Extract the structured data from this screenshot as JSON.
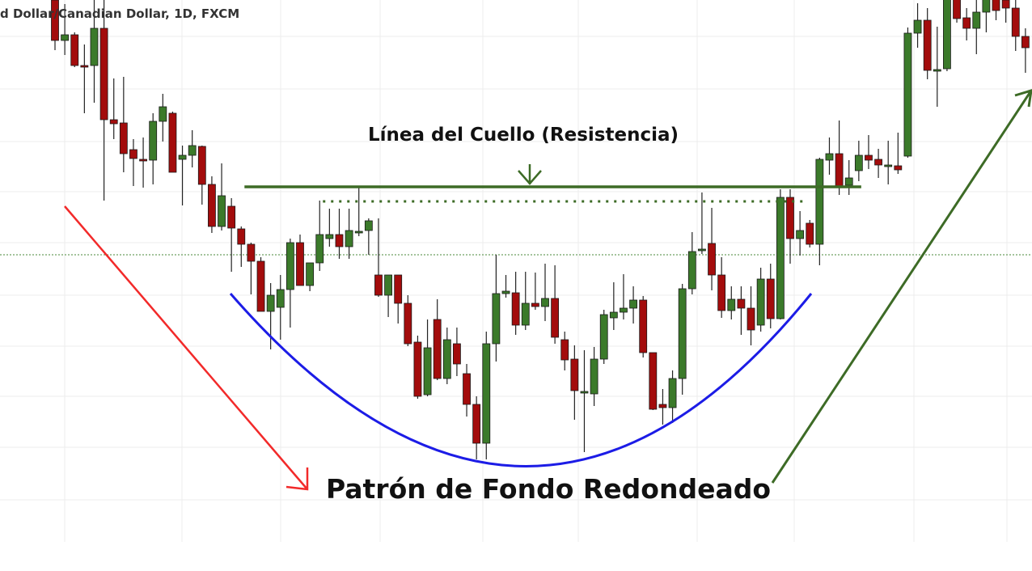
{
  "chart_data": {
    "type": "candlestick",
    "title": "d Dollar/Canadian Dollar, 1D, FXCM",
    "grid": true,
    "colors": {
      "up": "#3b7a2a",
      "down": "#a30c0c",
      "neckline": "#3d6b26",
      "arc": "#1c1ce6",
      "down_arrow": "#f22a2a",
      "up_arrow": "#3d6b26",
      "reference_line": "#4a8a3a"
    },
    "annotations": {
      "neckline_label": "Línea del Cuello (Resistencia)",
      "pattern_label": "Patrón de Fondo Redondeado",
      "neckline": {
        "level": 369,
        "from_index": 19,
        "to_index": 82
      },
      "dotted_resistance": {
        "level": 351,
        "from_index": 27,
        "to_index": 76
      },
      "reference_line": {
        "level": 285
      }
    },
    "ohlc": [
      [
        600,
        610,
        538,
        550
      ],
      [
        550,
        595,
        532,
        557
      ],
      [
        557,
        560,
        517,
        519
      ],
      [
        519,
        545,
        460,
        518
      ],
      [
        519,
        600,
        473,
        565
      ],
      [
        565,
        605,
        352,
        452
      ],
      [
        452,
        503,
        428,
        447
      ],
      [
        448,
        505,
        387,
        410
      ],
      [
        415,
        428,
        370,
        404
      ],
      [
        403,
        430,
        368,
        402
      ],
      [
        402,
        460,
        372,
        450
      ],
      [
        450,
        484,
        425,
        468
      ],
      [
        460,
        462,
        387,
        387
      ],
      [
        403,
        420,
        346,
        408
      ],
      [
        408,
        439,
        393,
        420
      ],
      [
        419,
        420,
        347,
        372
      ],
      [
        372,
        382,
        312,
        320
      ],
      [
        320,
        398,
        315,
        358
      ],
      [
        345,
        355,
        264,
        318
      ],
      [
        317,
        320,
        270,
        298
      ],
      [
        298,
        300,
        236,
        277
      ],
      [
        277,
        282,
        215,
        215
      ],
      [
        215,
        250,
        168,
        235
      ],
      [
        220,
        260,
        180,
        242
      ],
      [
        242,
        305,
        195,
        300
      ],
      [
        300,
        310,
        247,
        247
      ],
      [
        247,
        275,
        240,
        275
      ],
      [
        275,
        352,
        265,
        310
      ],
      [
        305,
        342,
        295,
        310
      ],
      [
        310,
        342,
        280,
        295
      ],
      [
        295,
        342,
        280,
        315
      ],
      [
        314,
        370,
        308,
        314
      ],
      [
        315,
        330,
        285,
        327
      ],
      [
        260,
        330,
        233,
        235
      ],
      [
        235,
        260,
        208,
        260
      ],
      [
        260,
        260,
        200,
        225
      ],
      [
        225,
        235,
        172,
        175
      ],
      [
        177,
        185,
        107,
        110
      ],
      [
        112,
        205,
        110,
        170
      ],
      [
        205,
        230,
        130,
        132
      ],
      [
        132,
        195,
        125,
        180
      ],
      [
        175,
        195,
        135,
        150
      ],
      [
        138,
        150,
        85,
        100
      ],
      [
        100,
        110,
        32,
        52
      ],
      [
        52,
        190,
        32,
        175
      ],
      [
        175,
        285,
        153,
        237
      ],
      [
        237,
        260,
        232,
        240
      ],
      [
        238,
        264,
        186,
        198
      ],
      [
        198,
        264,
        192,
        225
      ],
      [
        225,
        263,
        217,
        221
      ],
      [
        221,
        274,
        203,
        231
      ],
      [
        231,
        272,
        175,
        183
      ],
      [
        180,
        190,
        142,
        155
      ],
      [
        156,
        173,
        81,
        117
      ],
      [
        116,
        167,
        41,
        116
      ],
      [
        113,
        171,
        98,
        156
      ],
      [
        156,
        217,
        150,
        211
      ],
      [
        207,
        251,
        192,
        214
      ],
      [
        214,
        261,
        205,
        219
      ],
      [
        219,
        246,
        200,
        229
      ],
      [
        229,
        234,
        158,
        164
      ],
      [
        164,
        164,
        93,
        94
      ],
      [
        100,
        119,
        75,
        96
      ],
      [
        96,
        142,
        77,
        132
      ],
      [
        132,
        249,
        112,
        243
      ],
      [
        243,
        313,
        236,
        289
      ],
      [
        290,
        362,
        286,
        292
      ],
      [
        299,
        343,
        241,
        260
      ],
      [
        260,
        282,
        207,
        216
      ],
      [
        216,
        246,
        205,
        230
      ],
      [
        230,
        246,
        186,
        219
      ],
      [
        219,
        246,
        173,
        192
      ],
      [
        198,
        269,
        190,
        255
      ],
      [
        255,
        274,
        194,
        206
      ],
      [
        206,
        366,
        205,
        356
      ],
      [
        356,
        366,
        274,
        305
      ],
      [
        305,
        339,
        284,
        315
      ],
      [
        324,
        328,
        294,
        298
      ],
      [
        298,
        405,
        272,
        403
      ],
      [
        402,
        430,
        384,
        410
      ],
      [
        410,
        451,
        359,
        370
      ],
      [
        371,
        402,
        359,
        380
      ],
      [
        389,
        426,
        376,
        408
      ],
      [
        408,
        433,
        391,
        402
      ],
      [
        403,
        416,
        380,
        396
      ],
      [
        396,
        426,
        372,
        396
      ],
      [
        395,
        436,
        385,
        390
      ],
      [
        407,
        566,
        405,
        559
      ],
      [
        559,
        596,
        541,
        575
      ],
      [
        575,
        590,
        502,
        513
      ],
      [
        514,
        567,
        468,
        514
      ],
      [
        515,
        612,
        512,
        605
      ],
      [
        610,
        615,
        572,
        577
      ],
      [
        578,
        590,
        550,
        565
      ],
      [
        565,
        605,
        533,
        585
      ],
      [
        585,
        612,
        560,
        605
      ],
      [
        605,
        612,
        575,
        587
      ],
      [
        600,
        610,
        572,
        590
      ],
      [
        590,
        600,
        537,
        555
      ],
      [
        555,
        565,
        510,
        541
      ]
    ]
  }
}
